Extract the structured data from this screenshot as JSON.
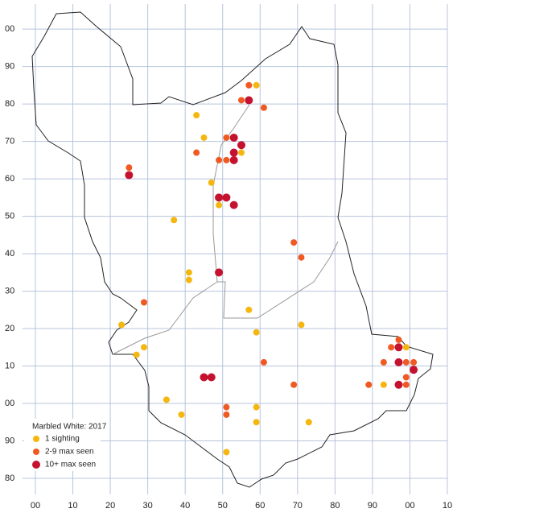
{
  "chart_data": {
    "type": "scatter",
    "legend_title": "Marbled White:  2017",
    "xlim": [
      -3.5,
      110
    ],
    "ylim": [
      -24.3,
      106.7
    ],
    "xticks": [
      {
        "value": 0,
        "label": "00"
      },
      10,
      20,
      30,
      40,
      50,
      60,
      70,
      80,
      90,
      {
        "value": 100,
        "label": "00"
      },
      {
        "value": 110,
        "label": "10"
      }
    ],
    "yticks": [
      {
        "value": -20,
        "label": "80"
      },
      {
        "value": -10,
        "label": "90"
      },
      {
        "value": 0,
        "label": "00"
      },
      10,
      20,
      30,
      40,
      50,
      60,
      70,
      80,
      90,
      {
        "value": 100,
        "label": "00"
      }
    ],
    "grid": true,
    "series": [
      {
        "name": "1 sighting",
        "color": "#f5b70f",
        "x": [
          59,
          43,
          45,
          55,
          47,
          37,
          49,
          41,
          41,
          57,
          23,
          29,
          27,
          59,
          71,
          35,
          39,
          59,
          59,
          73,
          51,
          99,
          93
        ],
        "values": [
          85,
          77,
          71,
          67,
          59,
          49,
          53,
          35,
          33,
          25,
          21,
          15,
          13,
          19,
          21,
          1,
          -3,
          -1,
          -5,
          -5,
          -13,
          15,
          5
        ]
      },
      {
        "name": "2-9 max seen",
        "color": "#f05a22",
        "x": [
          57,
          55,
          61,
          25,
          43,
          51,
          49,
          51,
          69,
          71,
          29,
          61,
          69,
          89,
          97,
          95,
          93,
          99,
          101,
          99,
          99,
          51,
          51
        ],
        "values": [
          85,
          81,
          79,
          63,
          67,
          71,
          65,
          65,
          43,
          39,
          27,
          11,
          5,
          5,
          17,
          15,
          11,
          11,
          11,
          7,
          5,
          -1,
          -3
        ]
      },
      {
        "name": "10+ max seen",
        "color": "#c4122f",
        "x": [
          57,
          53,
          55,
          53,
          53,
          25,
          49,
          51,
          53,
          49,
          45,
          47,
          97,
          97,
          97,
          101
        ],
        "values": [
          81,
          71,
          69,
          67,
          65,
          61,
          55,
          55,
          53,
          35,
          7,
          7,
          15,
          11,
          5,
          9
        ]
      }
    ]
  }
}
